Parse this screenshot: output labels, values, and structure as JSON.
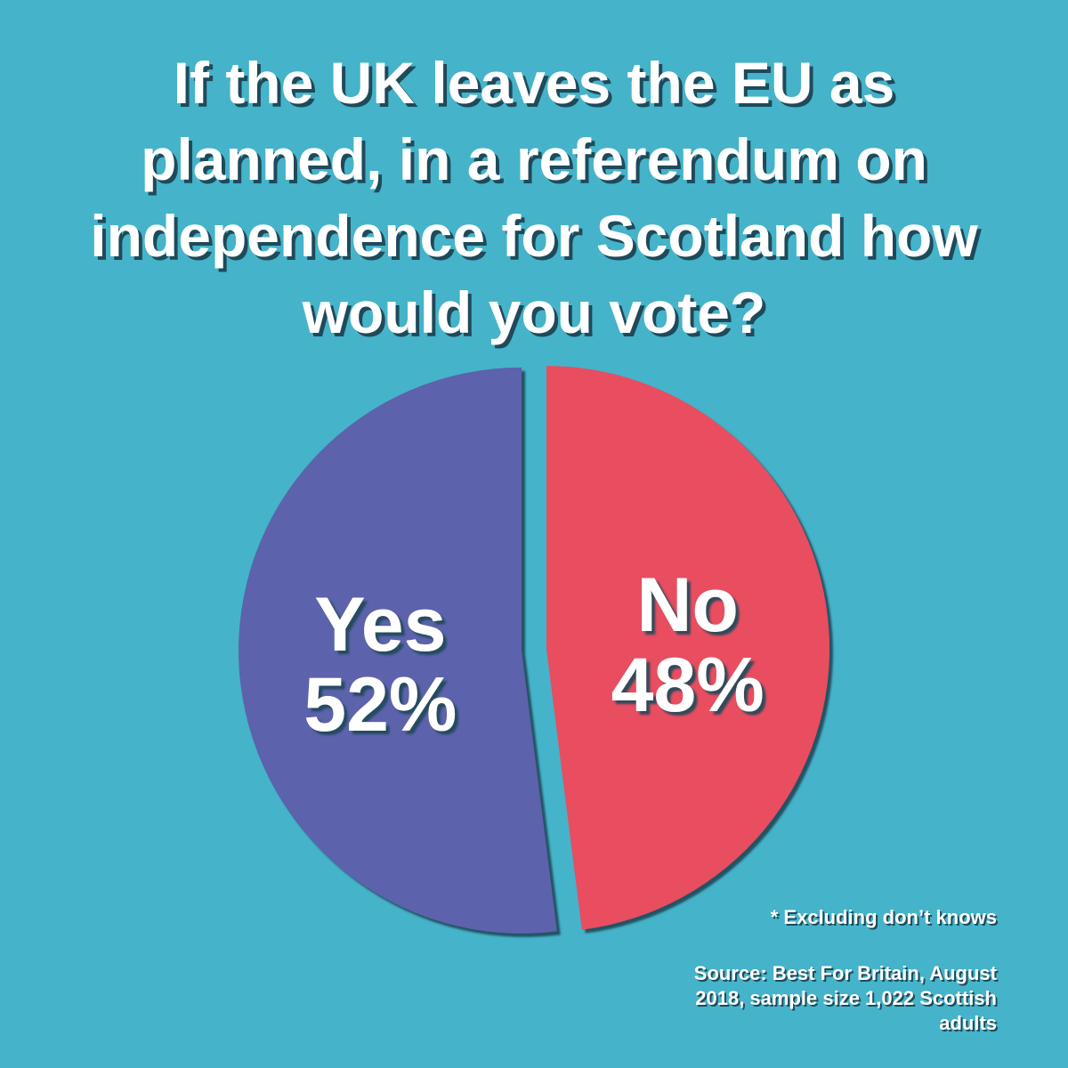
{
  "chart_data": {
    "type": "pie",
    "title": "If the UK leaves the EU as planned, in a referendum on independence for Scotland how would you vote?",
    "categories": [
      "Yes",
      "No"
    ],
    "values": [
      52,
      48
    ],
    "value_labels": [
      "52%",
      "48%"
    ],
    "colors": [
      "#5c62ab",
      "#e84d60"
    ],
    "footnote": "* Excluding don’t knows",
    "source": "Source: Best For Britain, August 2018, sample size 1,022 Scottish adults"
  }
}
